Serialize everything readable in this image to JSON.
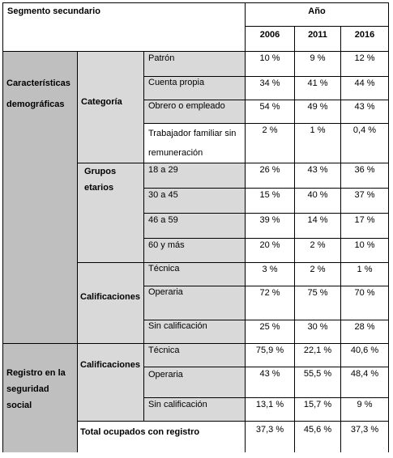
{
  "header": {
    "segment_label": "Segmento secundario",
    "year_label": "Año",
    "years": [
      "2006",
      "2011",
      "2016"
    ]
  },
  "groups": {
    "demographic_l1": "Características",
    "demographic_l2": "demográficas",
    "social_l1": "Registro en la",
    "social_l2": "seguridad",
    "social_l3": "social"
  },
  "subgroups": {
    "categoria": "Categoría",
    "grupos_l1": "Grupos",
    "grupos_l2": "etarios",
    "calificaciones_a": "Calificaciones",
    "calificaciones_b": "Calificaciones"
  },
  "rows": [
    {
      "label": "Patrón",
      "v": [
        "10 %",
        "9 %",
        "12 %"
      ]
    },
    {
      "label": "Cuenta propia",
      "v": [
        "34 %",
        "41 %",
        "44 %"
      ]
    },
    {
      "label": "Obrero o empleado",
      "v": [
        "54 %",
        "49 %",
        "43 %"
      ]
    },
    {
      "label": "Trabajador familiar sin",
      "label2": "remuneración",
      "v": [
        "2 %",
        "1 %",
        "0,4 %"
      ]
    },
    {
      "label": "18 a 29",
      "v": [
        "26 %",
        "43 %",
        "36 %"
      ]
    },
    {
      "label": "30 a 45",
      "v": [
        "15 %",
        "40 %",
        "37 %"
      ]
    },
    {
      "label": "46 a 59",
      "v": [
        "39 %",
        "14 %",
        "17 %"
      ]
    },
    {
      "label": "60 y más",
      "v": [
        "20 %",
        "2 %",
        "10 %"
      ]
    },
    {
      "label": "Técnica",
      "v": [
        "3 %",
        "2 %",
        "1 %"
      ]
    },
    {
      "label": "Operaria",
      "v": [
        "72 %",
        "75 %",
        "70 %"
      ]
    },
    {
      "label": "Sin calificación",
      "v": [
        "25 %",
        "30 %",
        "28 %"
      ]
    },
    {
      "label": "Técnica",
      "v": [
        "75,9 %",
        "22,1 %",
        "40,6 %"
      ]
    },
    {
      "label": "Operaria",
      "v": [
        "43 %",
        "55,5 %",
        "48,4 %"
      ]
    },
    {
      "label": "Sin calificación",
      "v": [
        "13,1 %",
        "15,7 %",
        "9 %"
      ]
    }
  ],
  "total": {
    "label": "Total ocupados con registro",
    "v": [
      "37,3 %",
      "45,6 %",
      "37,3 %"
    ]
  }
}
